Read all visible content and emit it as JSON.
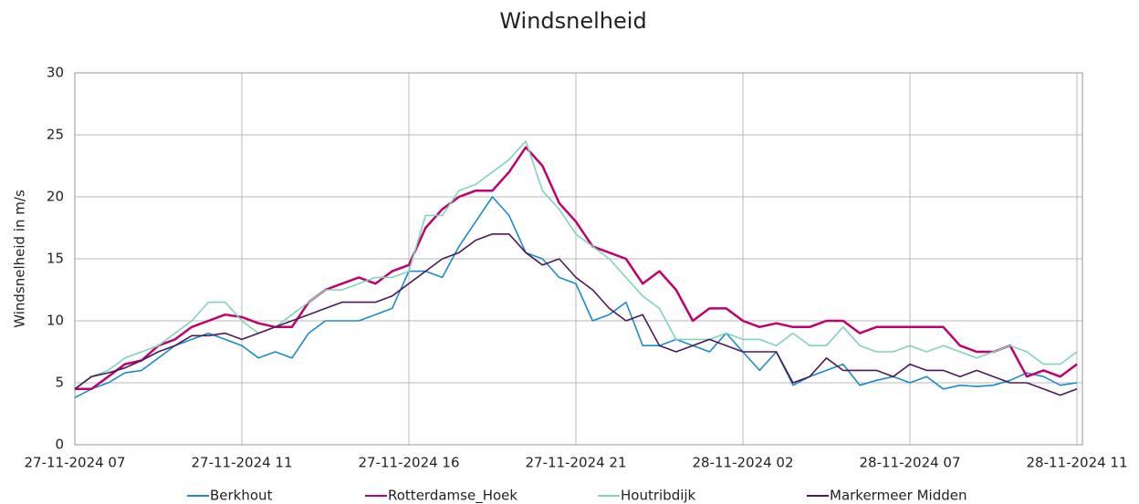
{
  "chart_data": {
    "type": "line",
    "title": "Windsnelheid",
    "y_label": "Windsnelheid in m/s",
    "categories": [
      "27-11-2024 07",
      null,
      null,
      null,
      null,
      null,
      null,
      null,
      null,
      null,
      "27-11-2024 11",
      null,
      null,
      null,
      null,
      null,
      null,
      null,
      null,
      null,
      "27-11-2024 16",
      null,
      null,
      null,
      null,
      null,
      null,
      null,
      null,
      null,
      "27-11-2024 21",
      null,
      null,
      null,
      null,
      null,
      null,
      null,
      null,
      null,
      "28-11-2024 02",
      null,
      null,
      null,
      null,
      null,
      null,
      null,
      null,
      null,
      "28-11-2024 07",
      null,
      null,
      null,
      null,
      null,
      null,
      null,
      null,
      null,
      "28-11-2024 11"
    ],
    "series": [
      {
        "name": "Berkhout",
        "color": "#1a8ccc",
        "values": [
          3.8,
          4.5,
          5,
          5.8,
          6,
          7,
          8,
          8.5,
          9,
          8.5,
          8,
          7,
          7.5,
          7,
          9,
          10,
          10,
          10,
          10.5,
          11,
          14,
          14,
          13.5,
          16,
          18,
          20,
          18.5,
          15.5,
          15,
          13.5,
          13,
          10,
          10.5,
          11.5,
          8,
          8,
          8.5,
          8,
          7.5,
          9,
          7.5,
          6,
          7.5,
          4.8,
          5.5,
          6,
          6.5,
          4.8,
          5.2,
          5.5,
          5,
          5.5,
          4.5,
          4.8,
          4.7,
          4.8,
          5.2,
          5.8,
          5.5,
          4.8,
          5
        ]
      },
      {
        "name": "Rotterdamse_Hoek",
        "color": "#c0006e",
        "values": [
          4.5,
          4.5,
          5.5,
          6.5,
          6.8,
          8,
          8.5,
          9.5,
          10,
          10.5,
          10.3,
          9.8,
          9.5,
          9.5,
          11.5,
          12.5,
          13,
          13.5,
          13,
          14,
          14.5,
          17.5,
          19,
          20,
          20.5,
          20.5,
          22,
          24,
          22.5,
          19.5,
          18,
          16,
          15.5,
          15,
          13,
          14,
          12.5,
          10,
          11,
          11,
          10,
          9.5,
          9.8,
          9.5,
          9.5,
          10,
          10,
          9,
          9.5,
          9.5,
          9.5,
          9.5,
          9.5,
          8,
          7.5,
          7.5,
          8,
          5.5,
          6,
          5.5,
          6.5
        ]
      },
      {
        "name": "Houtribdijk",
        "color": "#80d4b8",
        "values": [
          4.5,
          5.5,
          6,
          7,
          7.5,
          8,
          9,
          10,
          11.5,
          11.5,
          10,
          9,
          9.5,
          10.5,
          11.5,
          12.5,
          12.5,
          13,
          13.5,
          13.5,
          14,
          18.5,
          18.5,
          20.5,
          21,
          22,
          23,
          24.5,
          20.5,
          19,
          17,
          16,
          15,
          13.5,
          12,
          11,
          8.5,
          8.5,
          8.5,
          9,
          8.5,
          8.5,
          8,
          9,
          8,
          8,
          9.5,
          8,
          7.5,
          7.5,
          8,
          7.5,
          8,
          7.5,
          7,
          7.5,
          8,
          7.5,
          6.5,
          6.5,
          7.5
        ]
      },
      {
        "name": "Markermeer Midden",
        "color": "#4b1a5a",
        "values": [
          4.5,
          5.5,
          5.8,
          6.2,
          6.8,
          7.5,
          8,
          8.8,
          8.8,
          9,
          8.5,
          9,
          9.5,
          10,
          10.5,
          11,
          11.5,
          11.5,
          11.5,
          12,
          13,
          14,
          15,
          15.5,
          16.5,
          17,
          17,
          15.5,
          14.5,
          15,
          13.5,
          12.5,
          11,
          10,
          10.5,
          8,
          7.5,
          8,
          8.5,
          8,
          7.5,
          7.5,
          7.5,
          5,
          5.5,
          7,
          6,
          6,
          6,
          5.5,
          6.5,
          6,
          6,
          5.5,
          6,
          5.5,
          5,
          5,
          4.5,
          4,
          4.5
        ]
      }
    ],
    "ylim": [
      0,
      30
    ],
    "yticks": [
      0,
      5,
      10,
      15,
      20,
      25,
      30
    ],
    "grid": true,
    "legend": "bottom"
  }
}
